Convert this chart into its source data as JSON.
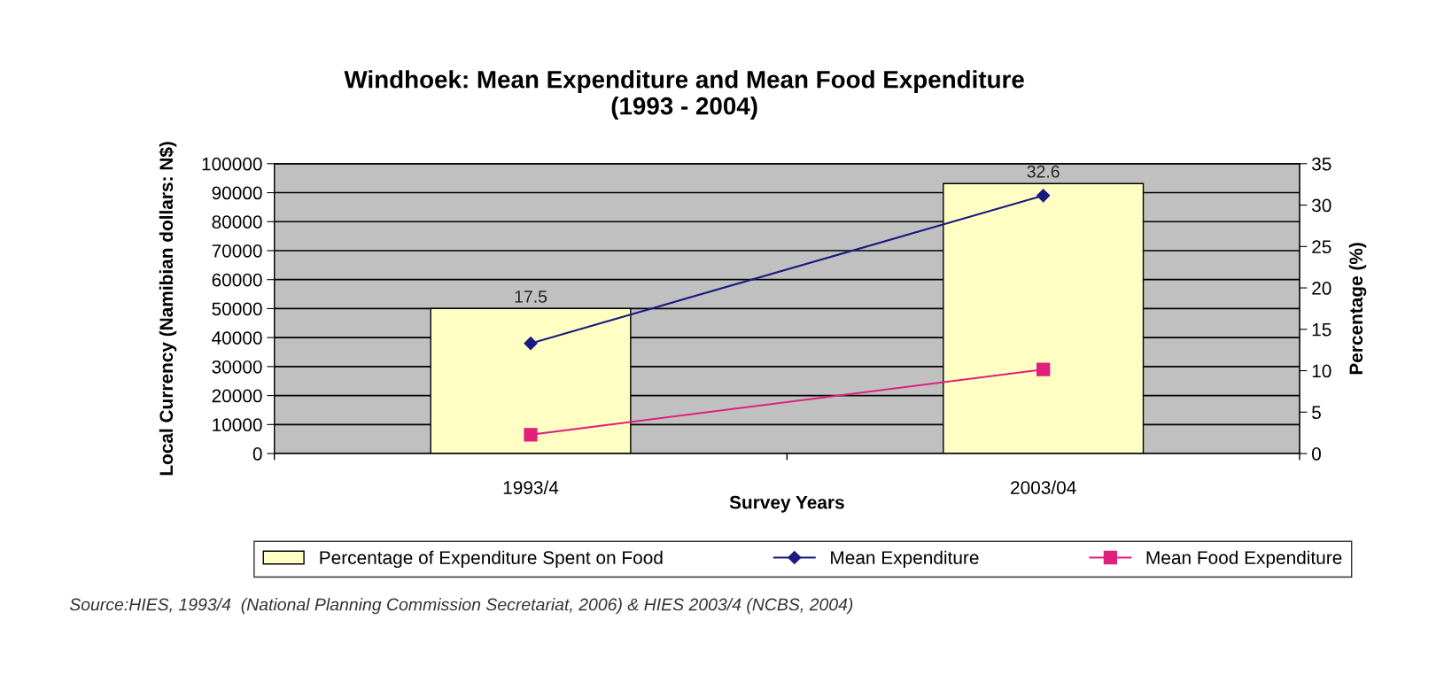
{
  "chart_data": {
    "type": "bar",
    "title": "Windhoek: Mean Expenditure and Mean Food Expenditure\n(1993 - 2004)",
    "xlabel": "Survey Years",
    "ylabel": "Local Currency (Namibian dollars: N$)",
    "y2label": "Percentage (%)",
    "categories": [
      "1993/4",
      "2003/04"
    ],
    "series": [
      {
        "name": "Percentage of Expenditure Spent on Food",
        "axis": "y2",
        "color": "#ffffc4",
        "values": [
          17.5,
          32.6
        ],
        "data_labels": true
      },
      {
        "name": "Mean Expenditure",
        "type": "line",
        "color": "#1a1a80",
        "marker": "diamond",
        "values": [
          38000,
          89000
        ]
      },
      {
        "name": "Mean Food Expenditure",
        "type": "line",
        "color": "#e0207a",
        "marker": "square",
        "values": [
          6500,
          29000
        ]
      }
    ],
    "ylim": [
      0,
      100000
    ],
    "yticks": [
      0,
      10000,
      20000,
      30000,
      40000,
      50000,
      60000,
      70000,
      80000,
      90000,
      100000
    ],
    "y2lim": [
      0,
      35
    ],
    "y2ticks": [
      0,
      5,
      10,
      15,
      20,
      25,
      30,
      35
    ],
    "grid": "y",
    "legend": "bottom",
    "annotations": [
      "Source:HIES, 1993/4  (National Planning Commission Secretariat, 2006) & HIES 2003/4 (NCBS, 2004)"
    ]
  }
}
